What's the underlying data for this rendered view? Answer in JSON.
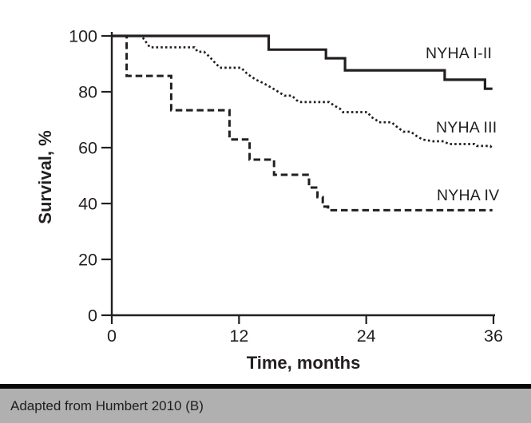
{
  "chart_data": {
    "type": "line",
    "subtype": "kaplan-meier-step-survival",
    "title": "",
    "xlabel": "Time, months",
    "ylabel": "Survival, %",
    "xlim": [
      0,
      36
    ],
    "ylim": [
      0,
      100
    ],
    "xticks": [
      0,
      12,
      24,
      36
    ],
    "yticks": [
      100,
      80,
      60,
      40,
      20,
      0
    ],
    "grid": false,
    "legend_position": "inline-annotations-right",
    "line_color": "#231f20",
    "series": [
      {
        "name": "NYHA I-II",
        "style": "solid",
        "points": [
          [
            0,
            100
          ],
          [
            14.8,
            100
          ],
          [
            14.8,
            95.1
          ],
          [
            20.2,
            95.1
          ],
          [
            20.2,
            92
          ],
          [
            22,
            92
          ],
          [
            22,
            87.7
          ],
          [
            31.4,
            87.7
          ],
          [
            31.4,
            84.3
          ],
          [
            35.2,
            84.3
          ],
          [
            35.2,
            81.1
          ],
          [
            35.9,
            81.1
          ]
        ]
      },
      {
        "name": "NYHA III",
        "style": "dotted",
        "points": [
          [
            0,
            100
          ],
          [
            2.8,
            100
          ],
          [
            3.6,
            95.9
          ],
          [
            7.8,
            95.9
          ],
          [
            8.1,
            94.3
          ],
          [
            8.7,
            94.3
          ],
          [
            9.2,
            92.6
          ],
          [
            9.6,
            90.9
          ],
          [
            10.2,
            88.6
          ],
          [
            12.2,
            88.6
          ],
          [
            12.8,
            86.3
          ],
          [
            13.3,
            85.1
          ],
          [
            13.6,
            84.3
          ],
          [
            14.3,
            83.1
          ],
          [
            15.1,
            81.4
          ],
          [
            15.7,
            80
          ],
          [
            16.3,
            78.6
          ],
          [
            17,
            78.6
          ],
          [
            17.4,
            77.1
          ],
          [
            17.7,
            76.3
          ],
          [
            20.5,
            76.3
          ],
          [
            21,
            75
          ],
          [
            21.5,
            74
          ],
          [
            21.8,
            72.7
          ],
          [
            24.1,
            72.7
          ],
          [
            24.5,
            70.9
          ],
          [
            24.9,
            70
          ],
          [
            25.2,
            69.1
          ],
          [
            26.4,
            69.1
          ],
          [
            26.8,
            67.7
          ],
          [
            27.2,
            66.6
          ],
          [
            27.5,
            65.7
          ],
          [
            28.2,
            65.7
          ],
          [
            28.7,
            64.3
          ],
          [
            29.3,
            62.9
          ],
          [
            30.3,
            62.3
          ],
          [
            31.3,
            62.3
          ],
          [
            31.8,
            61.3
          ],
          [
            34.2,
            61.3
          ],
          [
            34.4,
            60.6
          ],
          [
            35.7,
            60.6
          ],
          [
            35.9,
            59.7
          ]
        ]
      },
      {
        "name": "NYHA IV",
        "style": "dashed",
        "points": [
          [
            0,
            100
          ],
          [
            1.4,
            100
          ],
          [
            1.4,
            85.7
          ],
          [
            5.6,
            85.7
          ],
          [
            5.6,
            73.4
          ],
          [
            11.1,
            73.4
          ],
          [
            11.1,
            62.9
          ],
          [
            13,
            62.9
          ],
          [
            13,
            55.7
          ],
          [
            15.3,
            55.7
          ],
          [
            15.3,
            50.3
          ],
          [
            18.6,
            50.3
          ],
          [
            18.6,
            45.7
          ],
          [
            19.4,
            45.7
          ],
          [
            19.4,
            42.3
          ],
          [
            19.9,
            42.3
          ],
          [
            19.9,
            38.9
          ],
          [
            20.4,
            38.9
          ],
          [
            20.4,
            37.6
          ],
          [
            35.9,
            37.6
          ]
        ]
      }
    ]
  },
  "footer": {
    "caption": "Adapted from Humbert 2010 (B)",
    "bar_color": "#b0b0b0",
    "rule_color": "#080808"
  }
}
